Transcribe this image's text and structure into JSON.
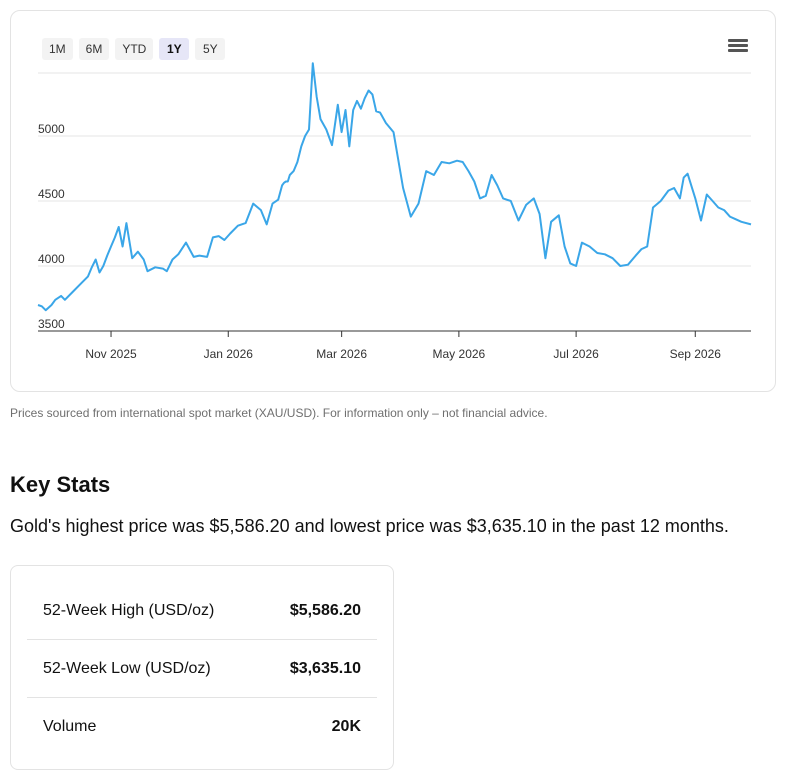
{
  "range_tabs": [
    {
      "label": "1M",
      "active": false
    },
    {
      "label": "6M",
      "active": false
    },
    {
      "label": "YTD",
      "active": false
    },
    {
      "label": "1Y",
      "active": true
    },
    {
      "label": "5Y",
      "active": false
    }
  ],
  "chart_data": {
    "type": "line",
    "title": "",
    "xlabel": "",
    "ylabel": "",
    "ylim": [
      3500,
      5600
    ],
    "yticks": [
      3500,
      4000,
      4500,
      5000
    ],
    "xlim": [
      "2025-09-24",
      "2026-09-30"
    ],
    "xticks": [
      {
        "date": "2025-11-01",
        "label": "Nov 2025"
      },
      {
        "date": "2026-01-01",
        "label": "Jan 2026"
      },
      {
        "date": "2026-03-01",
        "label": "Mar 2026"
      },
      {
        "date": "2026-05-01",
        "label": "May 2026"
      },
      {
        "date": "2026-07-01",
        "label": "Jul 2026"
      },
      {
        "date": "2026-09-01",
        "label": "Sep 2026"
      }
    ],
    "line_color": "#3aa6e8",
    "series": [
      {
        "x": [
          "2025-09-24",
          "2025-09-26",
          "2025-09-28",
          "2025-10-01",
          "2025-10-03",
          "2025-10-06",
          "2025-10-08",
          "2025-10-12",
          "2025-10-16",
          "2025-10-20",
          "2025-10-22",
          "2025-10-24",
          "2025-10-26",
          "2025-10-28",
          "2025-10-30",
          "2025-11-01",
          "2025-11-03",
          "2025-11-05",
          "2025-11-07",
          "2025-11-09",
          "2025-11-12",
          "2025-11-15",
          "2025-11-18",
          "2025-11-20",
          "2025-11-24",
          "2025-11-28",
          "2025-11-30",
          "2025-12-03",
          "2025-12-06",
          "2025-12-10",
          "2025-12-14",
          "2025-12-17",
          "2025-12-21",
          "2025-12-24",
          "2025-12-27",
          "2025-12-30",
          "2026-01-02",
          "2026-01-06",
          "2026-01-10",
          "2026-01-14",
          "2026-01-18",
          "2026-01-21",
          "2026-01-24",
          "2026-01-27",
          "2026-01-29",
          "2026-01-30",
          "2026-01-31",
          "2026-02-01",
          "2026-02-02",
          "2026-02-04",
          "2026-02-06",
          "2026-02-08",
          "2026-02-10",
          "2026-02-12",
          "2026-02-14",
          "2026-02-16",
          "2026-02-18",
          "2026-02-21",
          "2026-02-24",
          "2026-02-27",
          "2026-03-01",
          "2026-03-03",
          "2026-03-05",
          "2026-03-07",
          "2026-03-09",
          "2026-03-11",
          "2026-03-13",
          "2026-03-15",
          "2026-03-17",
          "2026-03-19",
          "2026-03-21",
          "2026-03-24",
          "2026-03-28",
          "2026-04-02",
          "2026-04-06",
          "2026-04-10",
          "2026-04-14",
          "2026-04-18",
          "2026-04-22",
          "2026-04-26",
          "2026-04-30",
          "2026-05-03",
          "2026-05-06",
          "2026-05-09",
          "2026-05-12",
          "2026-05-15",
          "2026-05-18",
          "2026-05-21",
          "2026-05-24",
          "2026-05-28",
          "2026-06-01",
          "2026-06-05",
          "2026-06-09",
          "2026-06-12",
          "2026-06-15",
          "2026-06-18",
          "2026-06-22",
          "2026-06-25",
          "2026-06-28",
          "2026-07-01",
          "2026-07-04",
          "2026-07-08",
          "2026-07-12",
          "2026-07-16",
          "2026-07-20",
          "2026-07-24",
          "2026-07-28",
          "2026-08-01",
          "2026-08-04",
          "2026-08-07",
          "2026-08-10",
          "2026-08-14",
          "2026-08-18",
          "2026-08-21",
          "2026-08-24",
          "2026-08-26",
          "2026-08-28",
          "2026-09-01",
          "2026-09-04",
          "2026-09-07",
          "2026-09-10",
          "2026-09-13",
          "2026-09-16",
          "2026-09-19",
          "2026-09-22",
          "2026-09-25",
          "2026-09-30"
        ],
        "values": [
          3700,
          3690,
          3660,
          3700,
          3740,
          3770,
          3740,
          3800,
          3860,
          3920,
          3990,
          4050,
          3950,
          4000,
          4080,
          4150,
          4220,
          4300,
          4150,
          4330,
          4060,
          4110,
          4050,
          3960,
          3990,
          3980,
          3960,
          4050,
          4090,
          4180,
          4070,
          4080,
          4070,
          4220,
          4230,
          4200,
          4250,
          4310,
          4330,
          4480,
          4430,
          4320,
          4480,
          4510,
          4620,
          4640,
          4650,
          4650,
          4700,
          4730,
          4800,
          4920,
          5000,
          5050,
          5560,
          5300,
          5130,
          5050,
          4930,
          5240,
          5030,
          5200,
          4920,
          5200,
          5270,
          5210,
          5290,
          5350,
          5320,
          5190,
          5180,
          5100,
          5030,
          4600,
          4380,
          4480,
          4730,
          4700,
          4800,
          4790,
          4810,
          4800,
          4730,
          4650,
          4520,
          4540,
          4700,
          4620,
          4520,
          4500,
          4350,
          4470,
          4520,
          4400,
          4060,
          4340,
          4390,
          4150,
          4020,
          4000,
          4180,
          4150,
          4100,
          4090,
          4060,
          4000,
          4010,
          4080,
          4130,
          4150,
          4450,
          4500,
          4580,
          4600,
          4520,
          4680,
          4710,
          4520,
          4350,
          4550,
          4500,
          4450,
          4430,
          4380,
          4360,
          4340,
          4320
        ]
      }
    ]
  },
  "footnote": "Prices sourced from international spot market (XAU/USD). For information only – not financial advice.",
  "key_stats": {
    "title": "Key Stats",
    "summary": "Gold's highest price was $5,586.20 and lowest price was $3,635.10 in the past 12 months.",
    "rows": [
      {
        "label": "52-Week High (USD/oz)",
        "value": "$5,586.20"
      },
      {
        "label": "52-Week Low (USD/oz)",
        "value": "$3,635.10"
      },
      {
        "label": "Volume",
        "value": "20K"
      }
    ]
  }
}
